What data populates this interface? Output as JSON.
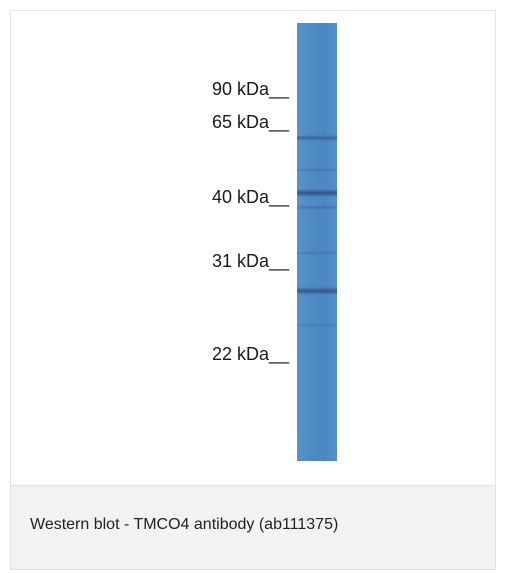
{
  "figure": {
    "markers": [
      {
        "label": "90 kDa__"
      },
      {
        "label": "65 kDa__"
      },
      {
        "label": "40 kDa__"
      },
      {
        "label": "31 kDa__"
      },
      {
        "label": "22 kDa__"
      }
    ],
    "lane_color": "#4f8cc6",
    "caption": "Western blot - TMCO4 antibody (ab111375)"
  }
}
